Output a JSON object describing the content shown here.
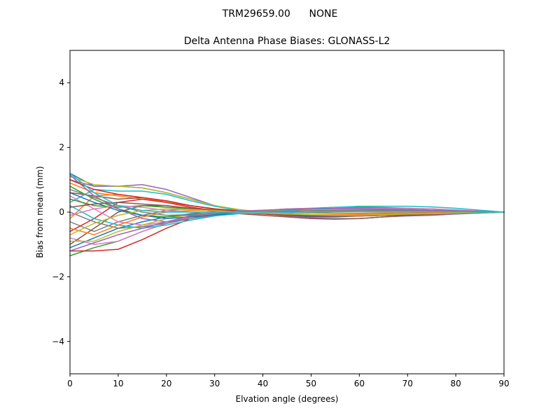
{
  "chart_data": {
    "type": "line",
    "suptitle": "TRM29659.00      NONE",
    "title": "Delta Antenna Phase Biases: GLONASS-L2",
    "xlabel": "Elvation angle (degrees)",
    "ylabel": "Bias from mean (mm)",
    "xlim": [
      0,
      90
    ],
    "ylim": [
      -5,
      5
    ],
    "xticks": [
      0,
      10,
      20,
      30,
      40,
      50,
      60,
      70,
      80,
      90
    ],
    "xtick_labels": [
      "0",
      "10",
      "20",
      "30",
      "40",
      "50",
      "60",
      "70",
      "80",
      "90"
    ],
    "yticks": [
      -4,
      -2,
      0,
      2,
      4
    ],
    "ytick_labels": [
      "−4",
      "−2",
      "0",
      "2",
      "4"
    ],
    "grid": false,
    "legend": "none",
    "x": [
      0,
      5,
      10,
      15,
      20,
      25,
      30,
      35,
      40,
      45,
      50,
      55,
      60,
      65,
      70,
      75,
      80,
      85,
      90
    ],
    "series": [
      {
        "color": "#1f77b4",
        "values": [
          1.2,
          0.8,
          0.8,
          0.75,
          0.6,
          0.4,
          0.2,
          0.05,
          -0.05,
          -0.1,
          -0.15,
          -0.15,
          -0.12,
          -0.1,
          -0.08,
          -0.06,
          -0.04,
          -0.02,
          0
        ]
      },
      {
        "color": "#ff7f0e",
        "values": [
          0.9,
          0.6,
          0.5,
          0.4,
          0.3,
          0.2,
          0.1,
          0.05,
          0.0,
          -0.05,
          -0.08,
          -0.1,
          -0.1,
          -0.08,
          -0.06,
          -0.04,
          -0.03,
          -0.01,
          0
        ]
      },
      {
        "color": "#2ca02c",
        "values": [
          -1.35,
          -1.1,
          -0.9,
          -0.6,
          -0.35,
          -0.15,
          -0.05,
          0.0,
          0.05,
          0.1,
          0.12,
          0.15,
          0.15,
          0.14,
          0.12,
          0.1,
          0.06,
          0.03,
          0
        ]
      },
      {
        "color": "#d62728",
        "values": [
          -1.2,
          -1.2,
          -1.15,
          -0.85,
          -0.5,
          -0.2,
          -0.05,
          0.02,
          0.05,
          0.08,
          0.1,
          0.1,
          0.1,
          0.1,
          0.08,
          0.06,
          0.04,
          0.02,
          0
        ]
      },
      {
        "color": "#9467bd",
        "values": [
          1.0,
          0.8,
          0.8,
          0.85,
          0.7,
          0.45,
          0.2,
          0.05,
          -0.05,
          -0.12,
          -0.18,
          -0.2,
          -0.2,
          -0.15,
          -0.12,
          -0.1,
          -0.06,
          -0.03,
          0
        ]
      },
      {
        "color": "#8c564b",
        "values": [
          0.6,
          0.5,
          0.4,
          0.45,
          0.35,
          0.2,
          0.1,
          0.02,
          -0.05,
          -0.1,
          -0.12,
          -0.12,
          -0.1,
          -0.08,
          -0.06,
          -0.04,
          -0.02,
          -0.01,
          0
        ]
      },
      {
        "color": "#e377c2",
        "values": [
          -0.8,
          -1.0,
          -0.9,
          -0.6,
          -0.35,
          -0.15,
          -0.05,
          0.0,
          0.05,
          0.1,
          0.12,
          0.12,
          0.12,
          0.1,
          0.08,
          0.06,
          0.04,
          0.02,
          0
        ]
      },
      {
        "color": "#7f7f7f",
        "values": [
          -0.3,
          -0.6,
          -0.3,
          -0.1,
          0.05,
          0.1,
          0.08,
          0.05,
          0.02,
          0.0,
          -0.02,
          -0.03,
          -0.03,
          -0.02,
          -0.02,
          -0.01,
          -0.01,
          0.0,
          0
        ]
      },
      {
        "color": "#bcbd22",
        "values": [
          1.1,
          0.85,
          0.8,
          0.75,
          0.6,
          0.4,
          0.2,
          0.08,
          0.0,
          -0.05,
          -0.1,
          -0.12,
          -0.12,
          -0.1,
          -0.08,
          -0.06,
          -0.04,
          -0.02,
          0
        ]
      },
      {
        "color": "#17becf",
        "values": [
          0.3,
          0.7,
          0.65,
          0.65,
          0.55,
          0.35,
          0.18,
          0.05,
          0.0,
          -0.04,
          -0.08,
          -0.1,
          -0.1,
          -0.08,
          -0.06,
          -0.05,
          -0.03,
          -0.01,
          0
        ]
      },
      {
        "color": "#1f77b4",
        "values": [
          -1.1,
          -0.8,
          -0.5,
          -0.3,
          -0.15,
          -0.05,
          0.0,
          0.02,
          0.04,
          0.05,
          0.06,
          0.06,
          0.06,
          0.05,
          0.04,
          0.03,
          0.02,
          0.01,
          0
        ]
      },
      {
        "color": "#ff7f0e",
        "values": [
          -0.2,
          0.5,
          0.55,
          0.45,
          0.3,
          0.15,
          0.05,
          0.0,
          -0.03,
          -0.06,
          -0.08,
          -0.08,
          -0.07,
          -0.06,
          -0.05,
          -0.04,
          -0.02,
          -0.01,
          0
        ]
      },
      {
        "color": "#2ca02c",
        "values": [
          0.8,
          0.4,
          0.1,
          -0.1,
          -0.15,
          -0.1,
          -0.05,
          0.0,
          0.03,
          0.05,
          0.06,
          0.07,
          0.07,
          0.06,
          0.05,
          0.04,
          0.02,
          0.01,
          0
        ]
      },
      {
        "color": "#d62728",
        "values": [
          -0.6,
          -0.2,
          0.3,
          0.4,
          0.3,
          0.15,
          0.05,
          -0.02,
          -0.06,
          -0.1,
          -0.12,
          -0.12,
          -0.1,
          -0.08,
          -0.06,
          -0.04,
          -0.02,
          -0.01,
          0
        ]
      },
      {
        "color": "#9467bd",
        "values": [
          1.15,
          0.5,
          0.1,
          -0.2,
          -0.3,
          -0.2,
          -0.1,
          -0.05,
          0.0,
          0.04,
          0.08,
          0.1,
          0.1,
          0.1,
          0.08,
          0.06,
          0.04,
          0.02,
          0
        ]
      },
      {
        "color": "#8c564b",
        "values": [
          -1.0,
          -0.5,
          0.0,
          0.2,
          0.2,
          0.1,
          0.02,
          -0.05,
          -0.1,
          -0.15,
          -0.2,
          -0.22,
          -0.2,
          -0.15,
          -0.1,
          -0.07,
          -0.04,
          -0.02,
          0
        ]
      },
      {
        "color": "#e377c2",
        "values": [
          0.5,
          0.1,
          -0.3,
          -0.4,
          -0.3,
          -0.15,
          -0.05,
          0.0,
          0.03,
          0.06,
          0.08,
          0.1,
          0.12,
          0.12,
          0.12,
          0.1,
          0.07,
          0.03,
          0
        ]
      },
      {
        "color": "#7f7f7f",
        "values": [
          0.0,
          -0.3,
          -0.5,
          -0.45,
          -0.35,
          -0.2,
          -0.08,
          0.0,
          0.05,
          0.08,
          0.1,
          0.1,
          0.1,
          0.09,
          0.08,
          0.06,
          0.04,
          0.02,
          0
        ]
      },
      {
        "color": "#bcbd22",
        "values": [
          -0.9,
          -0.9,
          -0.6,
          -0.4,
          -0.2,
          -0.08,
          0.0,
          0.03,
          0.05,
          0.06,
          0.07,
          0.07,
          0.06,
          0.05,
          0.04,
          0.03,
          0.02,
          0.01,
          0
        ]
      },
      {
        "color": "#17becf",
        "values": [
          0.2,
          -0.2,
          -0.4,
          -0.5,
          -0.4,
          -0.25,
          -0.12,
          -0.05,
          0.0,
          0.05,
          0.1,
          0.15,
          0.18,
          0.18,
          0.18,
          0.16,
          0.12,
          0.06,
          0
        ]
      },
      {
        "color": "#1f77b4",
        "values": [
          0.6,
          0.3,
          0.05,
          -0.1,
          -0.2,
          -0.15,
          -0.08,
          -0.03,
          0.0,
          0.02,
          0.04,
          0.05,
          0.05,
          0.05,
          0.04,
          0.03,
          0.02,
          0.01,
          0
        ]
      },
      {
        "color": "#ff7f0e",
        "values": [
          -0.5,
          -0.7,
          -0.4,
          -0.15,
          0.0,
          0.05,
          0.05,
          0.03,
          0.01,
          -0.01,
          -0.03,
          -0.04,
          -0.04,
          -0.03,
          -0.03,
          -0.02,
          -0.01,
          0.0,
          0
        ]
      },
      {
        "color": "#2ca02c",
        "values": [
          0.4,
          0.2,
          0.15,
          0.2,
          0.15,
          0.1,
          0.05,
          0.0,
          -0.04,
          -0.08,
          -0.1,
          -0.12,
          -0.12,
          -0.1,
          -0.08,
          -0.06,
          -0.04,
          -0.02,
          0
        ]
      },
      {
        "color": "#d62728",
        "values": [
          1.0,
          0.7,
          0.55,
          0.45,
          0.35,
          0.2,
          0.1,
          0.03,
          -0.02,
          -0.06,
          -0.1,
          -0.12,
          -0.12,
          -0.1,
          -0.08,
          -0.06,
          -0.04,
          -0.02,
          0
        ]
      },
      {
        "color": "#9467bd",
        "values": [
          -1.2,
          -0.95,
          -0.7,
          -0.5,
          -0.3,
          -0.12,
          -0.02,
          0.03,
          0.06,
          0.08,
          0.1,
          0.1,
          0.1,
          0.09,
          0.08,
          0.06,
          0.04,
          0.02,
          0
        ]
      },
      {
        "color": "#8c564b",
        "values": [
          0.15,
          0.25,
          0.3,
          0.25,
          0.2,
          0.12,
          0.05,
          0.0,
          -0.04,
          -0.08,
          -0.1,
          -0.12,
          -0.12,
          -0.1,
          -0.08,
          -0.06,
          -0.04,
          -0.02,
          0
        ]
      },
      {
        "color": "#e377c2",
        "values": [
          -0.1,
          0.1,
          0.2,
          0.15,
          0.05,
          0.0,
          -0.02,
          -0.03,
          -0.03,
          -0.02,
          0.0,
          0.02,
          0.03,
          0.04,
          0.04,
          0.03,
          0.02,
          0.01,
          0
        ]
      },
      {
        "color": "#7f7f7f",
        "values": [
          0.7,
          0.45,
          0.2,
          0.0,
          -0.1,
          -0.08,
          -0.04,
          0.0,
          0.02,
          0.03,
          0.04,
          0.05,
          0.05,
          0.05,
          0.04,
          0.03,
          0.02,
          0.01,
          0
        ]
      },
      {
        "color": "#bcbd22",
        "values": [
          -0.7,
          -0.35,
          -0.1,
          0.05,
          0.1,
          0.08,
          0.04,
          0.0,
          -0.03,
          -0.06,
          -0.08,
          -0.1,
          -0.1,
          -0.08,
          -0.06,
          -0.05,
          -0.03,
          -0.01,
          0
        ]
      },
      {
        "color": "#17becf",
        "values": [
          1.2,
          0.6,
          0.2,
          0.05,
          0.0,
          0.0,
          0.0,
          0.0,
          0.0,
          0.0,
          0.0,
          0.01,
          0.02,
          0.02,
          0.02,
          0.02,
          0.01,
          0.0,
          0
        ]
      }
    ]
  }
}
